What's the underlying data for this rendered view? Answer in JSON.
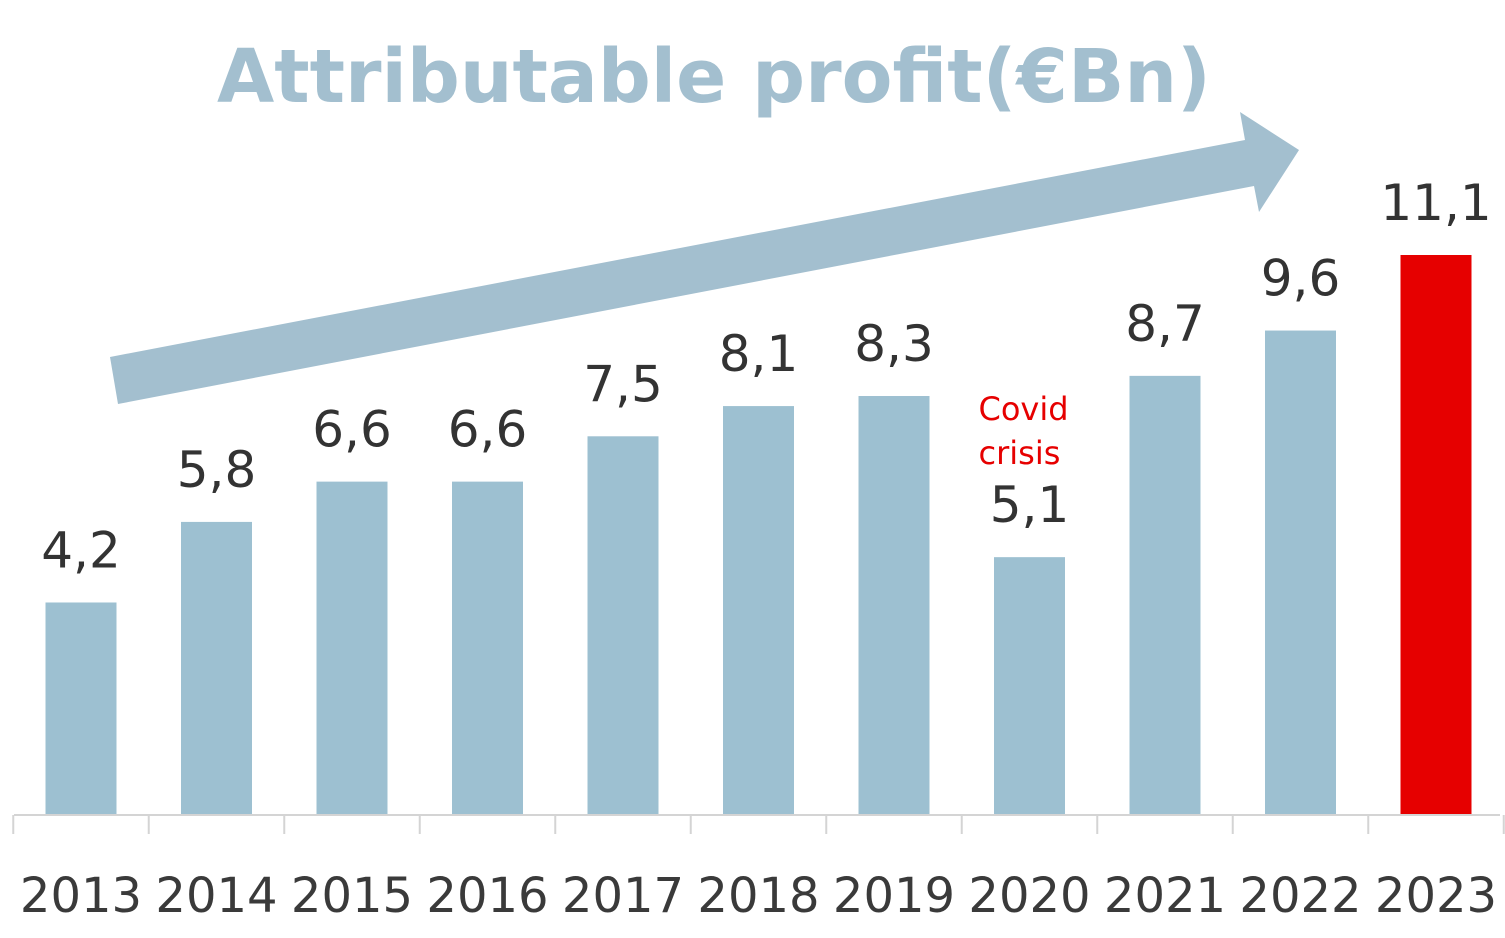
{
  "chart_data": {
    "type": "bar",
    "title": "Attributable profit(€Bn)",
    "xlabel": "",
    "ylabel": "",
    "categories": [
      "2013",
      "2014",
      "2015",
      "2016",
      "2017",
      "2018",
      "2019",
      "2020",
      "2021",
      "2022",
      "2023"
    ],
    "values": [
      4.2,
      5.8,
      6.6,
      6.6,
      7.5,
      8.1,
      8.3,
      5.1,
      8.7,
      9.6,
      11.1
    ],
    "value_labels": [
      "4,2",
      "5,8",
      "6,6",
      "6,6",
      "7,5",
      "8,1",
      "8,3",
      "5,1",
      "8,7",
      "9,6",
      "11,1"
    ],
    "ylim": [
      0,
      11.1
    ],
    "grid": false,
    "legend": "none",
    "highlight_category": "2023",
    "annotations": [
      {
        "category": "2020",
        "text_lines": [
          "Covid",
          "crisis"
        ]
      }
    ],
    "trend_arrow": true
  },
  "colors": {
    "bar": "#9dc0d1",
    "highlight_bar": "#e60000",
    "title": "#a3bfcf",
    "arrow": "#a3bfcf",
    "annotation": "#e60000",
    "axis": "#d4d4d4"
  }
}
